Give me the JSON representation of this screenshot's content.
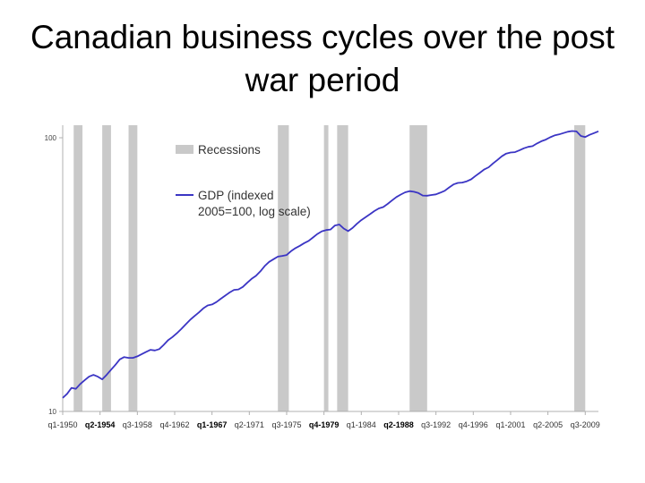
{
  "slide": {
    "title": "Canadian business cycles over the post war period"
  },
  "chart_data": {
    "type": "line",
    "title": "",
    "xlabel": "",
    "ylabel": "",
    "y_scale": "log",
    "ylim": [
      10,
      110
    ],
    "y_ticks": [
      {
        "value": 10,
        "label": "10"
      },
      {
        "value": 100,
        "label": "100"
      }
    ],
    "x_range": [
      1950.0,
      2011.0
    ],
    "x_ticks": [
      {
        "label": "q1-1950",
        "t": 1950.0,
        "bold": false
      },
      {
        "label": "q2-1954",
        "t": 1954.25,
        "bold": true
      },
      {
        "label": "q3-1958",
        "t": 1958.5,
        "bold": false
      },
      {
        "label": "q4-1962",
        "t": 1962.75,
        "bold": false
      },
      {
        "label": "q1-1967",
        "t": 1967.0,
        "bold": true
      },
      {
        "label": "q2-1971",
        "t": 1971.25,
        "bold": false
      },
      {
        "label": "q3-1975",
        "t": 1975.5,
        "bold": false
      },
      {
        "label": "q4-1979",
        "t": 1979.75,
        "bold": true
      },
      {
        "label": "q1-1984",
        "t": 1984.0,
        "bold": false
      },
      {
        "label": "q2-1988",
        "t": 1988.25,
        "bold": true
      },
      {
        "label": "q3-1992",
        "t": 1992.5,
        "bold": false
      },
      {
        "label": "q4-1996",
        "t": 1996.75,
        "bold": false
      },
      {
        "label": "q1-2001",
        "t": 2001.0,
        "bold": false
      },
      {
        "label": "q2-2005",
        "t": 2005.25,
        "bold": false
      },
      {
        "label": "q3-2009",
        "t": 2009.5,
        "bold": false
      }
    ],
    "recessions": [
      [
        1951.25,
        1952.25
      ],
      [
        1954.5,
        1955.5
      ],
      [
        1957.5,
        1958.5
      ],
      [
        1974.5,
        1975.75
      ],
      [
        1979.75,
        1980.25
      ],
      [
        1981.25,
        1982.5
      ],
      [
        1989.5,
        1991.5
      ],
      [
        2008.25,
        2009.5
      ]
    ],
    "series": [
      {
        "name": "GDP (indexed 2005=100, log scale)",
        "color": "#3b35c4",
        "points": [
          [
            1950.0,
            11.2
          ],
          [
            1950.5,
            11.6
          ],
          [
            1951.0,
            12.2
          ],
          [
            1951.5,
            12.1
          ],
          [
            1952.0,
            12.6
          ],
          [
            1952.5,
            13.0
          ],
          [
            1953.0,
            13.4
          ],
          [
            1953.5,
            13.6
          ],
          [
            1954.0,
            13.4
          ],
          [
            1954.5,
            13.1
          ],
          [
            1955.0,
            13.6
          ],
          [
            1955.5,
            14.2
          ],
          [
            1956.0,
            14.8
          ],
          [
            1956.5,
            15.5
          ],
          [
            1957.0,
            15.8
          ],
          [
            1957.5,
            15.7
          ],
          [
            1958.0,
            15.7
          ],
          [
            1958.5,
            15.9
          ],
          [
            1959.0,
            16.2
          ],
          [
            1959.5,
            16.5
          ],
          [
            1960.0,
            16.8
          ],
          [
            1960.5,
            16.7
          ],
          [
            1961.0,
            16.9
          ],
          [
            1961.5,
            17.5
          ],
          [
            1962.0,
            18.2
          ],
          [
            1962.5,
            18.7
          ],
          [
            1963.0,
            19.3
          ],
          [
            1963.5,
            20.0
          ],
          [
            1964.0,
            20.8
          ],
          [
            1964.5,
            21.6
          ],
          [
            1965.0,
            22.3
          ],
          [
            1965.5,
            23.0
          ],
          [
            1966.0,
            23.8
          ],
          [
            1966.5,
            24.4
          ],
          [
            1967.0,
            24.6
          ],
          [
            1967.5,
            25.1
          ],
          [
            1968.0,
            25.8
          ],
          [
            1968.5,
            26.5
          ],
          [
            1969.0,
            27.2
          ],
          [
            1969.5,
            27.8
          ],
          [
            1970.0,
            27.9
          ],
          [
            1970.5,
            28.5
          ],
          [
            1971.0,
            29.5
          ],
          [
            1971.5,
            30.5
          ],
          [
            1972.0,
            31.3
          ],
          [
            1972.5,
            32.5
          ],
          [
            1973.0,
            34.0
          ],
          [
            1973.5,
            35.2
          ],
          [
            1974.0,
            36.0
          ],
          [
            1974.5,
            36.8
          ],
          [
            1975.0,
            37.0
          ],
          [
            1975.5,
            37.3
          ],
          [
            1976.0,
            38.5
          ],
          [
            1976.5,
            39.5
          ],
          [
            1977.0,
            40.3
          ],
          [
            1977.5,
            41.2
          ],
          [
            1978.0,
            42.0
          ],
          [
            1978.5,
            43.2
          ],
          [
            1979.0,
            44.5
          ],
          [
            1979.5,
            45.5
          ],
          [
            1980.0,
            46.0
          ],
          [
            1980.5,
            46.2
          ],
          [
            1981.0,
            47.8
          ],
          [
            1981.5,
            48.2
          ],
          [
            1982.0,
            46.6
          ],
          [
            1982.5,
            45.6
          ],
          [
            1983.0,
            46.8
          ],
          [
            1983.5,
            48.5
          ],
          [
            1984.0,
            50.0
          ],
          [
            1984.5,
            51.3
          ],
          [
            1985.0,
            52.6
          ],
          [
            1985.5,
            54.0
          ],
          [
            1986.0,
            55.2
          ],
          [
            1986.5,
            55.8
          ],
          [
            1987.0,
            57.3
          ],
          [
            1987.5,
            59.0
          ],
          [
            1988.0,
            60.7
          ],
          [
            1988.5,
            62.0
          ],
          [
            1989.0,
            63.2
          ],
          [
            1989.5,
            63.8
          ],
          [
            1990.0,
            63.5
          ],
          [
            1990.5,
            62.8
          ],
          [
            1991.0,
            61.5
          ],
          [
            1991.5,
            61.4
          ],
          [
            1992.0,
            61.8
          ],
          [
            1992.5,
            62.1
          ],
          [
            1993.0,
            63.0
          ],
          [
            1993.5,
            64.0
          ],
          [
            1994.0,
            65.8
          ],
          [
            1994.5,
            67.5
          ],
          [
            1995.0,
            68.4
          ],
          [
            1995.5,
            68.6
          ],
          [
            1996.0,
            69.3
          ],
          [
            1996.5,
            70.5
          ],
          [
            1997.0,
            72.5
          ],
          [
            1997.5,
            74.5
          ],
          [
            1998.0,
            76.6
          ],
          [
            1998.5,
            78.0
          ],
          [
            1999.0,
            80.6
          ],
          [
            1999.5,
            83.0
          ],
          [
            2000.0,
            85.6
          ],
          [
            2000.5,
            87.5
          ],
          [
            2001.0,
            88.3
          ],
          [
            2001.5,
            88.6
          ],
          [
            2002.0,
            89.9
          ],
          [
            2002.5,
            91.5
          ],
          [
            2003.0,
            92.6
          ],
          [
            2003.5,
            93.2
          ],
          [
            2004.0,
            95.3
          ],
          [
            2004.5,
            97.1
          ],
          [
            2005.0,
            98.4
          ],
          [
            2005.5,
            100.4
          ],
          [
            2006.0,
            102.0
          ],
          [
            2006.5,
            102.8
          ],
          [
            2007.0,
            104.0
          ],
          [
            2007.5,
            105.2
          ],
          [
            2008.0,
            105.8
          ],
          [
            2008.5,
            105.5
          ],
          [
            2009.0,
            101.5
          ],
          [
            2009.5,
            100.6
          ],
          [
            2010.0,
            102.5
          ],
          [
            2010.5,
            104.0
          ],
          [
            2011.0,
            105.6
          ]
        ]
      }
    ],
    "legend": {
      "placement": "top-left inside plot",
      "entries": [
        {
          "label": "Recessions",
          "swatch": "bar",
          "color": "#c9c9c9"
        },
        {
          "label": "GDP (indexed 2005=100, log scale)",
          "swatch": "line",
          "color": "#3b35c4",
          "label_lines": [
            "GDP (indexed",
            "2005=100, log scale)"
          ]
        }
      ]
    },
    "colors": {
      "recession": "#c9c9c9",
      "gdp_line": "#3b35c4",
      "axis": "#b0b0b0"
    }
  }
}
